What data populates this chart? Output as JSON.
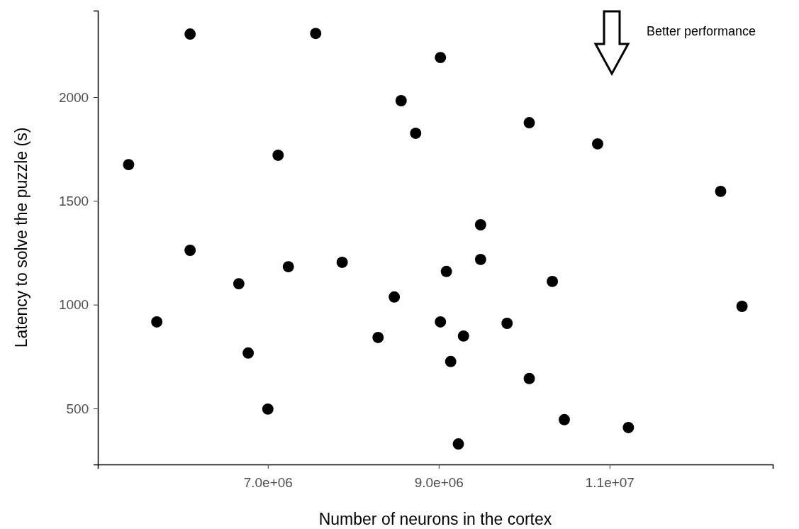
{
  "chart_data": {
    "type": "scatter",
    "xlabel": "Number of neurons in the cortex",
    "ylabel": "Latency to solve the puzzle (s)",
    "annotations": [
      "Better performance"
    ],
    "xlim": [
      5010000,
      12910000
    ],
    "ylim": [
      230,
      2417
    ],
    "xticks": [
      {
        "value": 7000000,
        "label": "7.0e+06"
      },
      {
        "value": 9000000,
        "label": "9.0e+06"
      },
      {
        "value": 11000000,
        "label": "1.1e+07"
      }
    ],
    "yticks": [
      500,
      1000,
      1500,
      2000
    ],
    "grid": false,
    "marker": "circle",
    "series": [
      {
        "color": "#000000",
        "x": [
          5370000,
          6090000,
          6090000,
          5700000,
          7560000,
          7120000,
          6660000,
          6770000,
          7000000,
          7240000,
          7870000,
          8560000,
          8730000,
          9020000,
          8480000,
          8290000,
          9020000,
          9090000,
          9140000,
          9290000,
          9230000,
          9490000,
          9490000,
          9800000,
          10060000,
          10060000,
          10860000,
          10330000,
          10470000,
          11220000,
          12300000,
          12550000
        ],
        "values": [
          1675,
          2304,
          1262,
          917,
          2307,
          1720,
          1101,
          767,
          497,
          1183,
          1204,
          1983,
          1826,
          2191,
          1037,
          842,
          917,
          1160,
          726,
          849,
          329,
          1385,
          1218,
          910,
          1877,
          644,
          1775,
          1112,
          446,
          408,
          1546,
          992
        ]
      }
    ]
  }
}
